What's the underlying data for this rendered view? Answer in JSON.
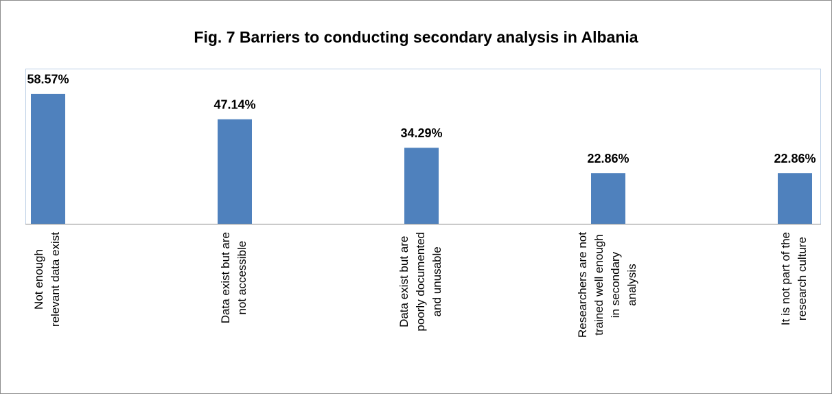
{
  "chart_data": {
    "type": "bar",
    "title": "Fig. 7 Barriers to conducting secondary analysis in Albania",
    "categories": [
      "Not enough\nrelevant data exist",
      "Data exist but are\nnot accessible",
      "Data exist but are\npoorly documented\nand unusable",
      "Researchers are not\ntrained well enough\nin secondary\nanalysis",
      "It is not part of the\nresearch culture"
    ],
    "values": [
      58.57,
      47.14,
      34.29,
      22.86,
      22.86
    ],
    "value_labels": [
      "58.57%",
      "47.14%",
      "34.29%",
      "22.86%",
      "22.86%"
    ],
    "color": "#4f81bd",
    "ylim": [
      0,
      70
    ]
  }
}
